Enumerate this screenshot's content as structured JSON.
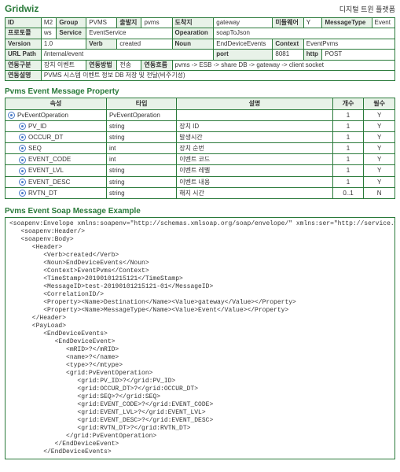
{
  "header": {
    "logo": "Gridwiz",
    "platform": "디지털 트윈 플랫폼"
  },
  "meta": {
    "row1": {
      "id_l": "ID",
      "id": "M2",
      "group_l": "Group",
      "group": "PVMS",
      "src_l": "출발지",
      "src": "pvms",
      "dst_l": "도착지",
      "dst": "gateway",
      "mw_l": "미들웨어",
      "mw": "Y",
      "mt_l": "MessageType",
      "mt": "Event"
    },
    "row2": {
      "proto_l": "프로토콜",
      "proto": "ws",
      "svc_l": "Service",
      "svc": "EventService",
      "op_l": "Opearation",
      "op": "soapToJson"
    },
    "row3": {
      "ver_l": "Version",
      "ver": "1.0",
      "verb_l": "Verb",
      "verb": "created",
      "noun_l": "Noun",
      "noun": "EndDeviceEvents",
      "ctx_l": "Context",
      "ctx": "EventPvms"
    },
    "row4": {
      "url_l": "URL Path",
      "url": "/internal/event",
      "port_l": "port",
      "port": "8081",
      "http_l": "http",
      "http": "POST"
    },
    "row5": {
      "kind_l": "연동구분",
      "kind": "장치 이벤트",
      "method_l": "연동방법",
      "method": "전송",
      "flow_l": "연동흐름",
      "flow": "pvms -> ESB -> share DB -> gateway -> client socket"
    },
    "row6": {
      "desc_l": "연동설명",
      "desc": "PVMS 시스템 이벤트 정보 DB 저장 및 전달(비주기성)"
    }
  },
  "propsTitle": "Pvms Event Message Property",
  "propsHeaders": {
    "attr": "속성",
    "type": "타입",
    "desc": "설명",
    "count": "개수",
    "req": "필수"
  },
  "props": [
    {
      "attr": "PvEventOperation",
      "indent": 0,
      "type": "PvEventOperation",
      "desc": "",
      "count": "1",
      "req": "Y"
    },
    {
      "attr": "PV_ID",
      "indent": 1,
      "type": "string",
      "desc": "장치 ID",
      "count": "1",
      "req": "Y"
    },
    {
      "attr": "OCCUR_DT",
      "indent": 1,
      "type": "string",
      "desc": "발생시간",
      "count": "1",
      "req": "Y"
    },
    {
      "attr": "SEQ",
      "indent": 1,
      "type": "int",
      "desc": "장치 순번",
      "count": "1",
      "req": "Y"
    },
    {
      "attr": "EVENT_CODE",
      "indent": 1,
      "type": "int",
      "desc": "이벤트 코드",
      "count": "1",
      "req": "Y"
    },
    {
      "attr": "EVENT_LVL",
      "indent": 1,
      "type": "string",
      "desc": "이벤트 레벨",
      "count": "1",
      "req": "Y"
    },
    {
      "attr": "EVENT_DESC",
      "indent": 1,
      "type": "string",
      "desc": "이벤트 내용",
      "count": "1",
      "req": "Y"
    },
    {
      "attr": "RVTN_DT",
      "indent": 1,
      "type": "string",
      "desc": "해지 시간",
      "count": "0..1",
      "req": "N"
    }
  ],
  "exampleTitle": "Pvms Event Soap Message Example",
  "xml": "<soapenv:Envelope xmlns:soapenv=\"http://schemas.xmlsoap.org/soap/envelope/\" xmlns:ser=\"http://service.ws.pms.data.\">\n   <soapenv:Header/>\n   <soapenv:Body>\n      <Header>\n         <Verb>created</Verb>\n         <Noun>EndDeviceEvents</Noun>\n         <Context>EventPvms</Context>\n         <TimeStamp>20190101215121</TimeStamp>\n         <MessageID>test-20190101215121-01</MessageID>\n         <CorrelationID/>\n         <Property><Name>Destination</Name><Value>gateway</Value></Property>\n         <Property><Name>MessageType</Name><Value>Event</Value></Property>\n      </Header>\n      <PayLoad>\n         <EndDeviceEvents>\n            <EndDeviceEvent>\n               <mRID>?</mRID>\n               <name>?</name>\n               <type>?</mtype>\n               <grid:PvEventOperation>\n                  <grid:PV_ID>?</grid:PV_ID>\n                  <grid:OCCUR_DT>?</grid:OCCUR_DT>\n                  <grid:SEQ>?</grid:SEQ>\n                  <grid:EVENT_CODE>?</grid:EVENT_CODE>\n                  <grid:EVENT_LVL>?</grid:EVENT_LVL>\n                  <grid:EVENT_DESC>?</grid:EVENT_DESC>\n                  <grid:RVTN_DT>?</grid:RVTN_DT>\n               </grid:PvEventOperation>\n            </EndDeviceEvent>\n         </EndDeviceEvents>"
}
